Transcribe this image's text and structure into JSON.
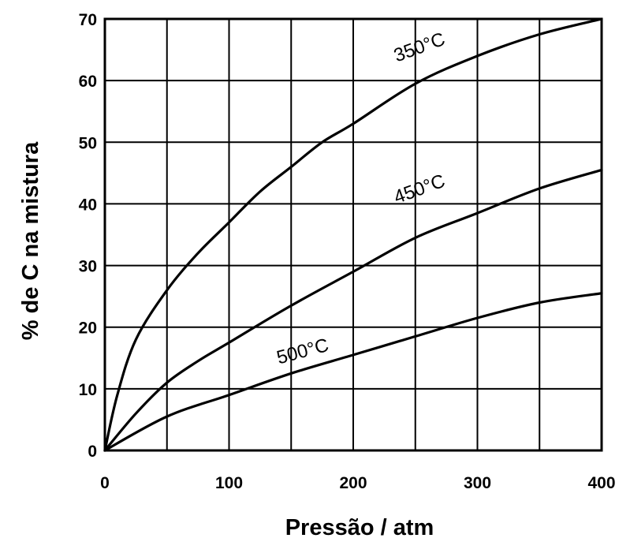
{
  "chart_data": {
    "type": "line",
    "xlabel": "Pressão / atm",
    "ylabel": "% de C na mistura",
    "xlim": [
      0,
      400
    ],
    "ylim": [
      0,
      70
    ],
    "grid": true,
    "x_ticks": [
      0,
      100,
      200,
      300,
      400
    ],
    "y_ticks": [
      0,
      10,
      20,
      30,
      40,
      50,
      60,
      70
    ],
    "series": [
      {
        "name": "350°C",
        "x": [
          0,
          10,
          25,
          50,
          75,
          100,
          125,
          150,
          175,
          200,
          250,
          300,
          350,
          400
        ],
        "y": [
          0,
          9,
          18,
          26,
          32,
          37,
          42,
          46,
          50,
          53,
          59.5,
          64,
          67.5,
          70
        ]
      },
      {
        "name": "450°C",
        "x": [
          0,
          25,
          50,
          75,
          100,
          150,
          200,
          250,
          300,
          350,
          400
        ],
        "y": [
          0,
          6,
          11,
          14.5,
          17.5,
          23.5,
          29,
          34.5,
          38.5,
          42.5,
          45.5
        ]
      },
      {
        "name": "500°C",
        "x": [
          0,
          50,
          100,
          150,
          200,
          250,
          300,
          350,
          400
        ],
        "y": [
          0,
          5.5,
          9,
          12.5,
          15.5,
          18.5,
          21.5,
          24,
          25.5
        ]
      }
    ]
  }
}
